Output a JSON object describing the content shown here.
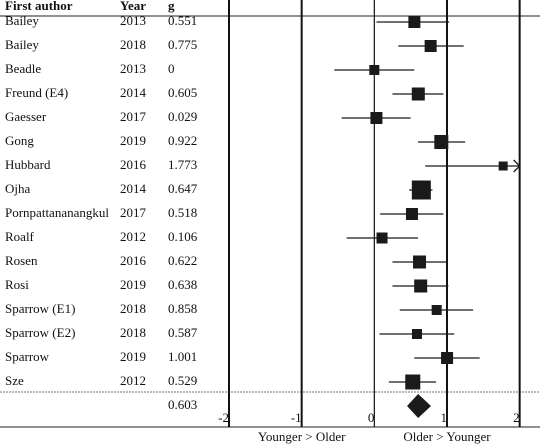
{
  "chart_data": {
    "type": "forest",
    "column_headers": [
      "First author",
      "Year",
      "g"
    ],
    "authors": [
      "Bailey",
      "Bailey",
      "Beadle",
      "Freund (E4)",
      "Gaesser",
      "Gong",
      "Hubbard",
      "Ojha",
      "Pornpattananangkul",
      "Roalf",
      "Rosen",
      "Rosi",
      "Sparrow (E1)",
      "Sparrow (E2)",
      "Sparrow",
      "Sze"
    ],
    "years": [
      2013,
      2018,
      2013,
      2014,
      2017,
      2019,
      2016,
      2014,
      2017,
      2012,
      2016,
      2019,
      2018,
      2018,
      2019,
      2012
    ],
    "values": [
      0.551,
      0.775,
      0,
      0.605,
      0.029,
      0.922,
      1.773,
      0.647,
      0.518,
      0.106,
      0.622,
      0.638,
      0.858,
      0.587,
      1.001,
      0.529
    ],
    "ci_low": [
      0.03,
      0.33,
      -0.55,
      0.25,
      -0.45,
      0.6,
      0.7,
      0.48,
      0.08,
      -0.38,
      0.25,
      0.25,
      0.35,
      0.07,
      0.55,
      0.2
    ],
    "ci_high": [
      1.03,
      1.23,
      0.55,
      0.95,
      0.5,
      1.25,
      2.0,
      0.8,
      0.95,
      0.6,
      1.0,
      1.02,
      1.36,
      1.1,
      1.45,
      0.85
    ],
    "weights": [
      12,
      12,
      10,
      13,
      12,
      14,
      9,
      19,
      12,
      11,
      13,
      13,
      10,
      10,
      12,
      15
    ],
    "arrow_right": [
      false,
      false,
      false,
      false,
      false,
      false,
      true,
      false,
      false,
      false,
      false,
      false,
      false,
      false,
      false,
      false
    ],
    "summary": {
      "value": 0.603,
      "ci_low": 0.45,
      "ci_high": 0.78
    },
    "color": "#1a1a1a",
    "xlim": [
      -2,
      2.28
    ],
    "xticks": [
      -2,
      -1,
      0,
      1,
      2
    ],
    "x_axis_labels": [
      "Younger > Older",
      "Older > Younger"
    ]
  }
}
